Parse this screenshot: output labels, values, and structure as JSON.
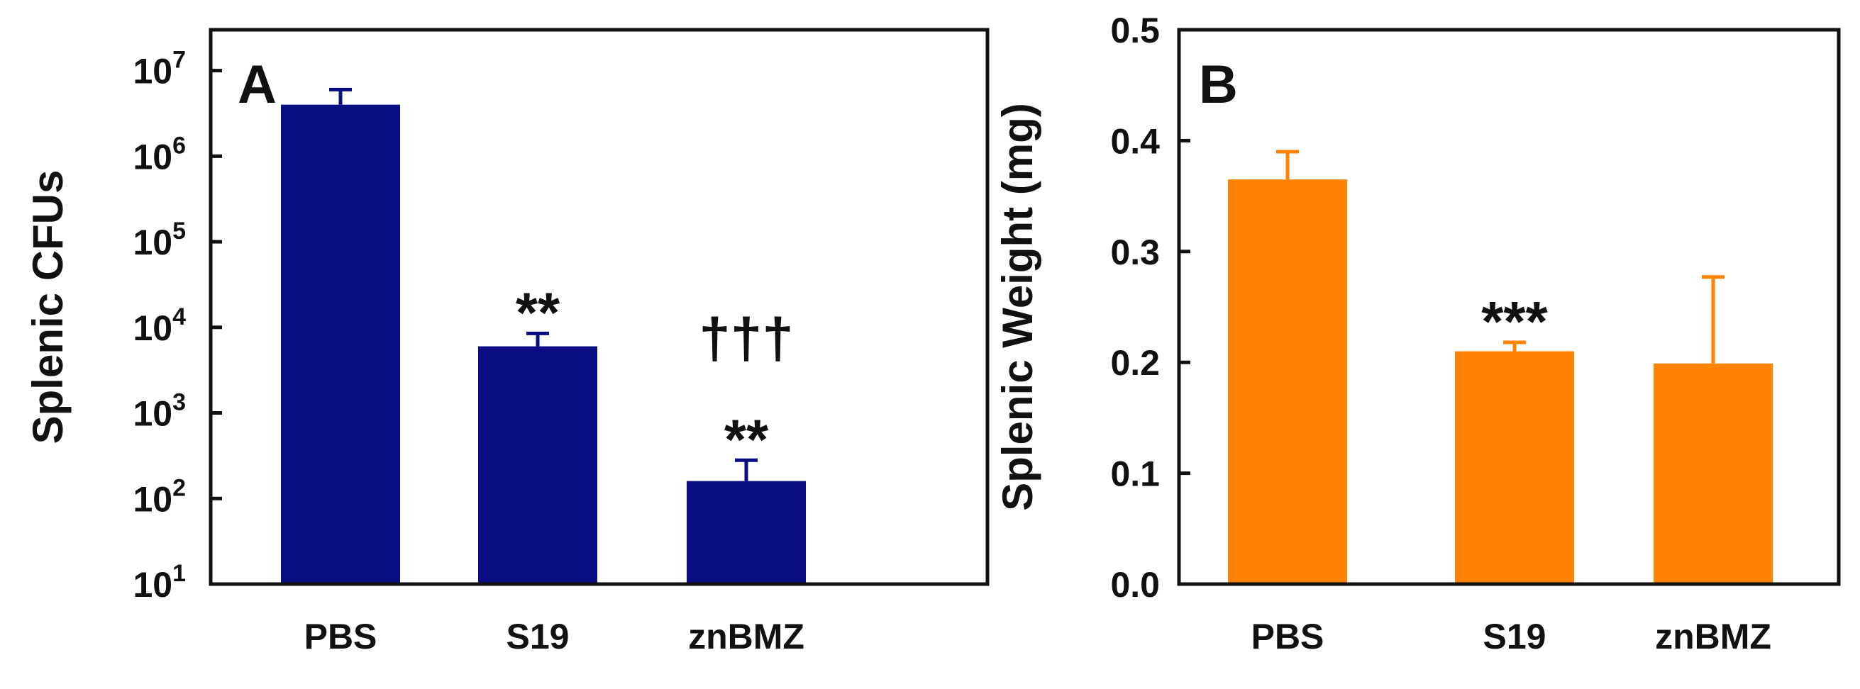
{
  "chart_data": [
    {
      "panel": "A",
      "type": "bar",
      "scale": "log",
      "categories": [
        "PBS",
        "S19",
        "znBMZ"
      ],
      "values": [
        4000000,
        6000,
        160
      ],
      "errors": [
        2000000,
        2500,
        120
      ],
      "ylabel": "Splenic CFUs",
      "xlabel": "",
      "ylim": [
        10,
        30000000
      ],
      "yticks": [
        {
          "value": 10,
          "base": "10",
          "exp": "1"
        },
        {
          "value": 100,
          "base": "10",
          "exp": "2"
        },
        {
          "value": 1000,
          "base": "10",
          "exp": "3"
        },
        {
          "value": 10000,
          "base": "10",
          "exp": "4"
        },
        {
          "value": 100000,
          "base": "10",
          "exp": "5"
        },
        {
          "value": 1000000,
          "base": "10",
          "exp": "6"
        },
        {
          "value": 10000000,
          "base": "10",
          "exp": "7"
        }
      ],
      "annotations": [
        {
          "category": "S19",
          "lines": [
            "**"
          ]
        },
        {
          "category": "znBMZ",
          "lines": [
            "†††",
            "**"
          ]
        }
      ],
      "color": "#0a0d82"
    },
    {
      "panel": "B",
      "type": "bar",
      "scale": "linear",
      "categories": [
        "PBS",
        "S19",
        "znBMZ"
      ],
      "values": [
        0.365,
        0.21,
        0.199
      ],
      "errors": [
        0.025,
        0.008,
        0.078
      ],
      "ylabel": "Splenic Weight (mg)",
      "xlabel": "",
      "ylim": [
        0,
        0.5
      ],
      "yticks": [
        {
          "value": 0.0,
          "label": "0.0"
        },
        {
          "value": 0.1,
          "label": "0.1"
        },
        {
          "value": 0.2,
          "label": "0.2"
        },
        {
          "value": 0.3,
          "label": "0.3"
        },
        {
          "value": 0.4,
          "label": "0.4"
        },
        {
          "value": 0.5,
          "label": "0.5"
        }
      ],
      "annotations": [
        {
          "category": "S19",
          "lines": [
            "***"
          ]
        }
      ],
      "color": "#ff8200"
    }
  ]
}
